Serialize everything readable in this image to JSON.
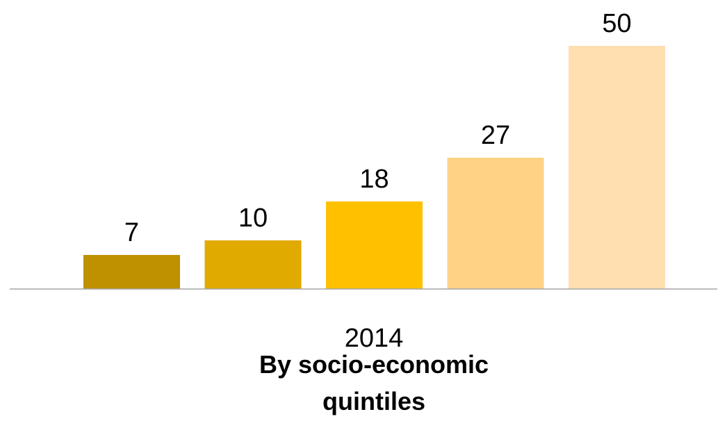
{
  "chart_data": {
    "type": "bar",
    "categories": [
      "2014"
    ],
    "series": [
      {
        "values": [
          7
        ],
        "color": "#BF9000"
      },
      {
        "values": [
          10
        ],
        "color": "#E0AA00"
      },
      {
        "values": [
          18
        ],
        "color": "#FFC000"
      },
      {
        "values": [
          27
        ],
        "color": "#FFD285"
      },
      {
        "values": [
          50
        ],
        "color": "#FFDFB0"
      }
    ],
    "data_labels": [
      "7",
      "10",
      "18",
      "27",
      "50"
    ],
    "xlabel_lines": [
      "By socio-economic",
      "quintiles"
    ],
    "ylabel": "",
    "grid": false,
    "legend": "none"
  },
  "colors": {
    "axis_line": "#A6A6A6"
  }
}
